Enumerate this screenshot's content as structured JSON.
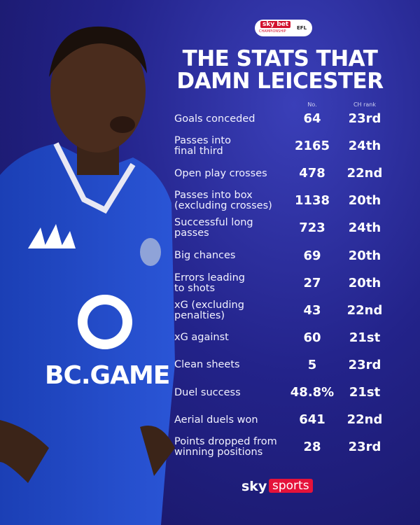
{
  "header": {
    "brand": "sky bet",
    "competition": "CHAMPIONSHIP",
    "league": "EFL",
    "title": [
      "THE STATS THAT",
      "DAMN LEICESTER"
    ]
  },
  "shirt": {
    "sponsor": "BC.GAME"
  },
  "table": {
    "columns": [
      "No.",
      "CH rank"
    ],
    "rows": [
      {
        "label": [
          "Goals conceded"
        ],
        "value": "64",
        "rank": "23rd"
      },
      {
        "label": [
          "Passes into",
          "final third"
        ],
        "value": "2165",
        "rank": "24th"
      },
      {
        "label": [
          "Open play crosses"
        ],
        "value": "478",
        "rank": "22nd"
      },
      {
        "label": [
          "Passes into box",
          "(excluding crosses)"
        ],
        "value": "1138",
        "rank": "20th"
      },
      {
        "label": [
          "Successful long",
          "passes"
        ],
        "value": "723",
        "rank": "24th"
      },
      {
        "label": [
          "Big chances"
        ],
        "value": "69",
        "rank": "20th"
      },
      {
        "label": [
          "Errors leading",
          "to shots"
        ],
        "value": "27",
        "rank": "20th"
      },
      {
        "label": [
          "xG (excluding",
          "penalties)"
        ],
        "value": "43",
        "rank": "22nd"
      },
      {
        "label": [
          "xG against"
        ],
        "value": "60",
        "rank": "21st"
      },
      {
        "label": [
          "Clean sheets"
        ],
        "value": "5",
        "rank": "23rd"
      },
      {
        "label": [
          "Duel success"
        ],
        "value": "48.8%",
        "rank": "21st"
      },
      {
        "label": [
          "Aerial duels won"
        ],
        "value": "641",
        "rank": "22nd"
      },
      {
        "label": [
          "Points dropped from",
          "winning positions"
        ],
        "value": "28",
        "rank": "23rd"
      }
    ]
  },
  "footer": {
    "brand": "sky",
    "product": "sports"
  }
}
